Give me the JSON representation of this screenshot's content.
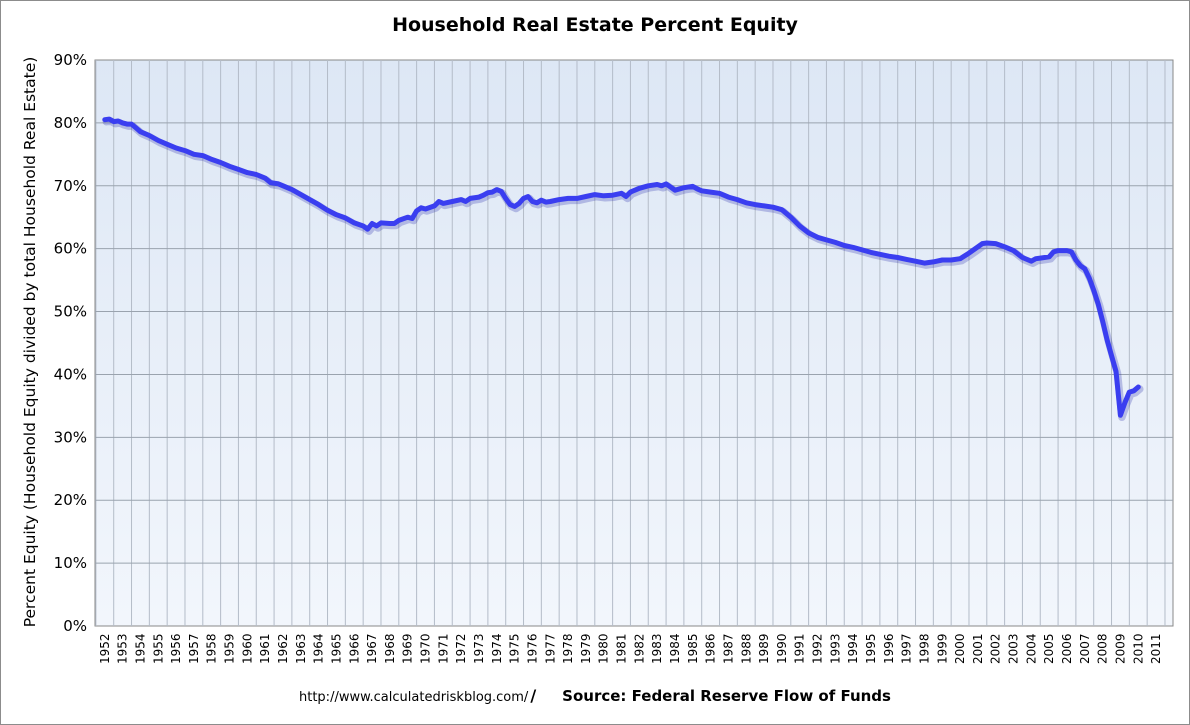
{
  "chart_data": {
    "type": "line",
    "title": "Household Real Estate Percent Equity",
    "ylabel": "Percent Equity (Household Equity divided by total Household Real Estate)",
    "xlabel": "",
    "ylim": [
      0,
      90
    ],
    "yticks": [
      "0%",
      "10%",
      "20%",
      "30%",
      "40%",
      "50%",
      "60%",
      "70%",
      "80%",
      "90%"
    ],
    "xlim": [
      1952,
      2011
    ],
    "xticks": [
      "1952",
      "1953",
      "1954",
      "1955",
      "1956",
      "1957",
      "1958",
      "1959",
      "1960",
      "1961",
      "1962",
      "1963",
      "1964",
      "1965",
      "1966",
      "1967",
      "1968",
      "1969",
      "1970",
      "1971",
      "1972",
      "1973",
      "1974",
      "1975",
      "1976",
      "1977",
      "1978",
      "1979",
      "1980",
      "1981",
      "1982",
      "1983",
      "1984",
      "1985",
      "1986",
      "1987",
      "1988",
      "1989",
      "1990",
      "1991",
      "1992",
      "1993",
      "1994",
      "1995",
      "1996",
      "1997",
      "1998",
      "1999",
      "2000",
      "2001",
      "2002",
      "2003",
      "2004",
      "2005",
      "2006",
      "2007",
      "2008",
      "2009",
      "2010",
      "2011"
    ],
    "grid": true,
    "line_color": "#3a3ef0",
    "background_color": "#e6eefa",
    "series": [
      {
        "name": "",
        "points": [
          [
            1952.0,
            80.5
          ],
          [
            1952.25,
            80.6
          ],
          [
            1952.5,
            80.2
          ],
          [
            1952.75,
            80.3
          ],
          [
            1953.0,
            80.0
          ],
          [
            1953.25,
            79.8
          ],
          [
            1953.5,
            79.8
          ],
          [
            1953.75,
            79.2
          ],
          [
            1954.0,
            78.6
          ],
          [
            1954.5,
            78.0
          ],
          [
            1955.0,
            77.2
          ],
          [
            1955.5,
            76.6
          ],
          [
            1956.0,
            76.0
          ],
          [
            1956.5,
            75.6
          ],
          [
            1957.0,
            75.0
          ],
          [
            1957.5,
            74.8
          ],
          [
            1958.0,
            74.2
          ],
          [
            1958.5,
            73.7
          ],
          [
            1959.0,
            73.1
          ],
          [
            1959.5,
            72.6
          ],
          [
            1960.0,
            72.1
          ],
          [
            1960.5,
            71.8
          ],
          [
            1961.0,
            71.2
          ],
          [
            1961.3,
            70.5
          ],
          [
            1961.75,
            70.3
          ],
          [
            1962.0,
            70.0
          ],
          [
            1962.5,
            69.4
          ],
          [
            1963.0,
            68.6
          ],
          [
            1963.5,
            67.8
          ],
          [
            1964.0,
            67.0
          ],
          [
            1964.5,
            66.1
          ],
          [
            1965.0,
            65.4
          ],
          [
            1965.5,
            64.9
          ],
          [
            1966.0,
            64.1
          ],
          [
            1966.5,
            63.6
          ],
          [
            1966.75,
            63.1
          ],
          [
            1967.0,
            64.0
          ],
          [
            1967.25,
            63.6
          ],
          [
            1967.5,
            64.1
          ],
          [
            1968.0,
            64.0
          ],
          [
            1968.25,
            64.0
          ],
          [
            1968.5,
            64.5
          ],
          [
            1969.0,
            65.0
          ],
          [
            1969.25,
            64.8
          ],
          [
            1969.5,
            66.0
          ],
          [
            1969.75,
            66.5
          ],
          [
            1970.0,
            66.3
          ],
          [
            1970.5,
            66.8
          ],
          [
            1970.75,
            67.5
          ],
          [
            1971.0,
            67.2
          ],
          [
            1971.5,
            67.5
          ],
          [
            1972.0,
            67.8
          ],
          [
            1972.25,
            67.5
          ],
          [
            1972.5,
            68.0
          ],
          [
            1973.0,
            68.2
          ],
          [
            1973.25,
            68.5
          ],
          [
            1973.5,
            68.9
          ],
          [
            1973.75,
            69.0
          ],
          [
            1974.0,
            69.4
          ],
          [
            1974.25,
            69.1
          ],
          [
            1974.5,
            68.0
          ],
          [
            1974.75,
            67.0
          ],
          [
            1975.0,
            66.7
          ],
          [
            1975.25,
            67.2
          ],
          [
            1975.5,
            68.0
          ],
          [
            1975.75,
            68.3
          ],
          [
            1976.0,
            67.5
          ],
          [
            1976.25,
            67.3
          ],
          [
            1976.5,
            67.7
          ],
          [
            1976.75,
            67.4
          ],
          [
            1977.0,
            67.5
          ],
          [
            1977.5,
            67.8
          ],
          [
            1978.0,
            68.0
          ],
          [
            1978.5,
            68.0
          ],
          [
            1979.0,
            68.3
          ],
          [
            1979.5,
            68.6
          ],
          [
            1980.0,
            68.4
          ],
          [
            1980.5,
            68.5
          ],
          [
            1981.0,
            68.8
          ],
          [
            1981.25,
            68.3
          ],
          [
            1981.5,
            69.0
          ],
          [
            1982.0,
            69.6
          ],
          [
            1982.5,
            70.0
          ],
          [
            1983.0,
            70.2
          ],
          [
            1983.25,
            70.0
          ],
          [
            1983.5,
            70.3
          ],
          [
            1983.75,
            69.8
          ],
          [
            1984.0,
            69.3
          ],
          [
            1984.5,
            69.7
          ],
          [
            1985.0,
            69.9
          ],
          [
            1985.25,
            69.5
          ],
          [
            1985.5,
            69.2
          ],
          [
            1986.0,
            69.0
          ],
          [
            1986.5,
            68.8
          ],
          [
            1987.0,
            68.2
          ],
          [
            1987.5,
            67.8
          ],
          [
            1988.0,
            67.3
          ],
          [
            1988.5,
            67.0
          ],
          [
            1989.0,
            66.8
          ],
          [
            1989.5,
            66.6
          ],
          [
            1990.0,
            66.2
          ],
          [
            1990.5,
            65.0
          ],
          [
            1991.0,
            63.6
          ],
          [
            1991.5,
            62.5
          ],
          [
            1992.0,
            61.8
          ],
          [
            1992.5,
            61.4
          ],
          [
            1993.0,
            61.0
          ],
          [
            1993.5,
            60.5
          ],
          [
            1994.0,
            60.2
          ],
          [
            1994.5,
            59.8
          ],
          [
            1995.0,
            59.4
          ],
          [
            1995.5,
            59.1
          ],
          [
            1996.0,
            58.8
          ],
          [
            1996.5,
            58.6
          ],
          [
            1997.0,
            58.3
          ],
          [
            1997.5,
            58.0
          ],
          [
            1998.0,
            57.7
          ],
          [
            1998.5,
            57.9
          ],
          [
            1999.0,
            58.2
          ],
          [
            1999.5,
            58.2
          ],
          [
            2000.0,
            58.4
          ],
          [
            2000.5,
            59.3
          ],
          [
            2001.0,
            60.3
          ],
          [
            2001.25,
            60.8
          ],
          [
            2001.5,
            60.9
          ],
          [
            2002.0,
            60.8
          ],
          [
            2002.5,
            60.3
          ],
          [
            2003.0,
            59.7
          ],
          [
            2003.5,
            58.6
          ],
          [
            2004.0,
            58.0
          ],
          [
            2004.25,
            58.4
          ],
          [
            2004.5,
            58.5
          ],
          [
            2005.0,
            58.7
          ],
          [
            2005.25,
            59.5
          ],
          [
            2005.5,
            59.7
          ],
          [
            2006.0,
            59.7
          ],
          [
            2006.25,
            59.5
          ],
          [
            2006.5,
            58.2
          ],
          [
            2006.75,
            57.3
          ],
          [
            2007.0,
            56.8
          ],
          [
            2007.25,
            55.3
          ],
          [
            2007.5,
            53.4
          ],
          [
            2007.75,
            51.2
          ],
          [
            2008.0,
            48.5
          ],
          [
            2008.25,
            45.5
          ],
          [
            2008.5,
            43.0
          ],
          [
            2008.75,
            40.5
          ],
          [
            2009.0,
            33.5
          ],
          [
            2009.25,
            35.5
          ],
          [
            2009.5,
            37.2
          ],
          [
            2009.75,
            37.4
          ],
          [
            2010.0,
            38.0
          ]
        ]
      }
    ]
  },
  "footer": {
    "url": "http://www.calculatedriskblog.com/",
    "source": "Source: Federal Reserve Flow of Funds"
  }
}
